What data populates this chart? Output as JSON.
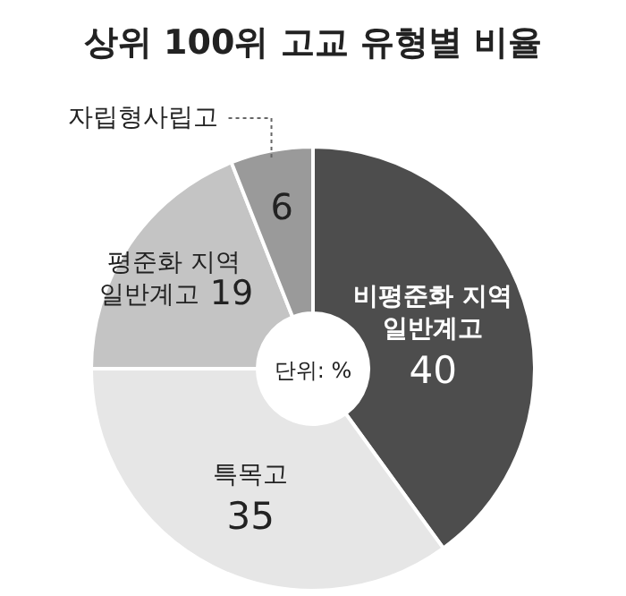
{
  "chart_data": {
    "type": "donut",
    "title": "상위 100위 고교 유형별 비율",
    "categories": [
      "비평준화 지역 일반계고",
      "특목고",
      "평준화 지역 일반계고",
      "자립형사립고"
    ],
    "values": [
      40,
      35,
      19,
      6
    ],
    "colors": [
      "#4d4d4d",
      "#e6e6e6",
      "#c4c4c4",
      "#9a9a9a"
    ],
    "data_labels": true,
    "annotations": [
      "단위: %"
    ]
  }
}
